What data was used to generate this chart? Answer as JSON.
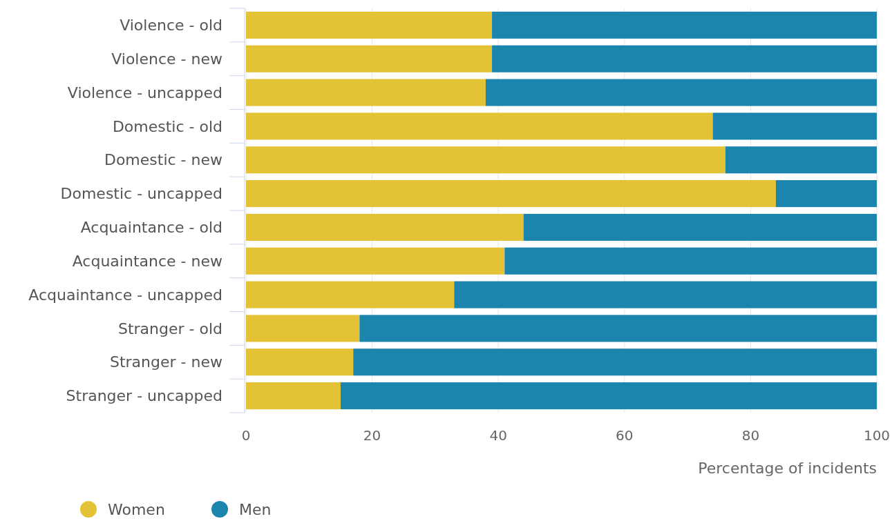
{
  "chart_data": {
    "type": "bar",
    "orientation": "horizontal",
    "stacked": true,
    "categories": [
      "Violence - old",
      "Violence - new",
      "Violence - uncapped",
      "Domestic - old",
      "Domestic - new",
      "Domestic - uncapped",
      "Acquaintance - old",
      "Acquaintance - new",
      "Acquaintance - uncapped",
      "Stranger - old",
      "Stranger - new",
      "Stranger - uncapped"
    ],
    "series": [
      {
        "name": "Women",
        "color": "#e3c335",
        "values": [
          39,
          39,
          38,
          74,
          76,
          84,
          44,
          41,
          33,
          18,
          17,
          15
        ]
      },
      {
        "name": "Men",
        "color": "#1b85ad",
        "values": [
          61,
          61,
          62,
          26,
          24,
          16,
          56,
          59,
          67,
          82,
          83,
          85
        ]
      }
    ],
    "xlim": [
      0,
      100
    ],
    "xticks": [
      0,
      20,
      40,
      60,
      80,
      100
    ],
    "xlabel": "Percentage of incidents",
    "grid": "x",
    "legend": "bottom left"
  }
}
